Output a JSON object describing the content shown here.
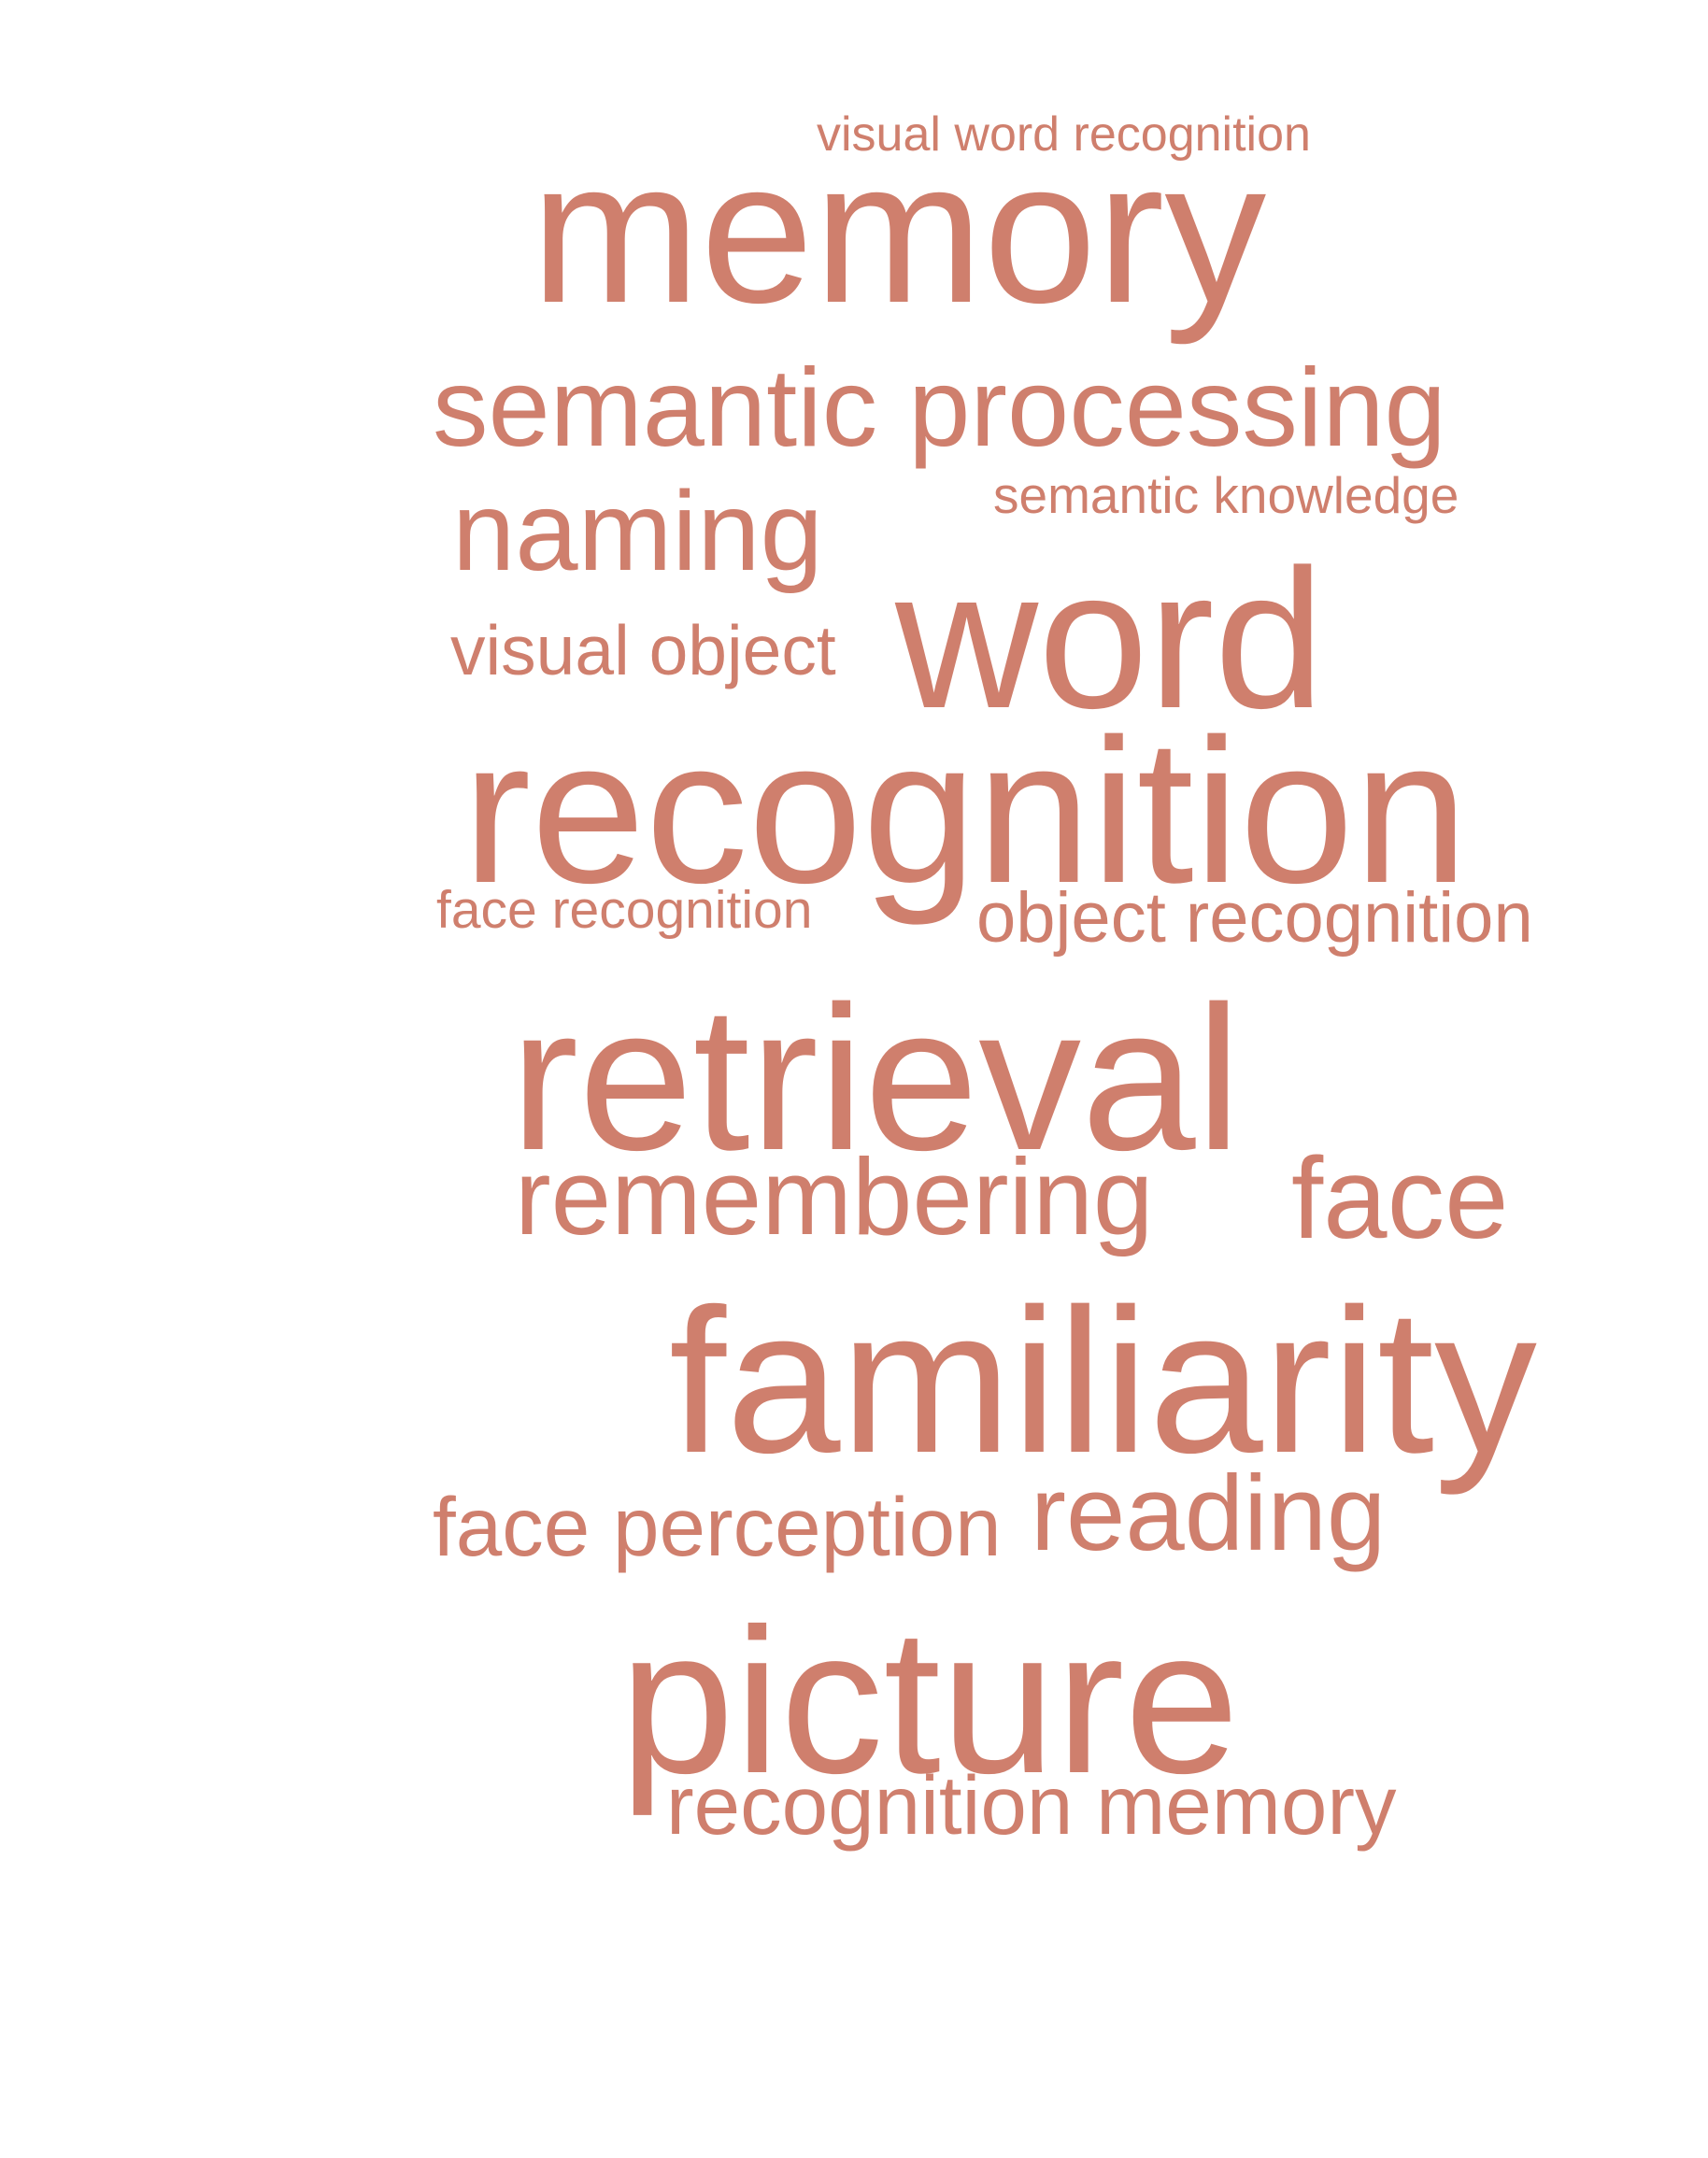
{
  "theme": {
    "background": "#ffffff",
    "word_color": "#cf7f6d"
  },
  "word_cloud": {
    "words": [
      {
        "text": "visual word recognition"
      },
      {
        "text": "memory"
      },
      {
        "text": "semantic processing"
      },
      {
        "text": "semantic knowledge"
      },
      {
        "text": "naming"
      },
      {
        "text": "visual object"
      },
      {
        "text": "word"
      },
      {
        "text": "recognition"
      },
      {
        "text": "face recognition"
      },
      {
        "text": "object recognition"
      },
      {
        "text": "retrieval"
      },
      {
        "text": "remembering"
      },
      {
        "text": "face"
      },
      {
        "text": "familiarity"
      },
      {
        "text": "face perception"
      },
      {
        "text": "reading"
      },
      {
        "text": "picture"
      },
      {
        "text": "recognition memory"
      }
    ]
  }
}
